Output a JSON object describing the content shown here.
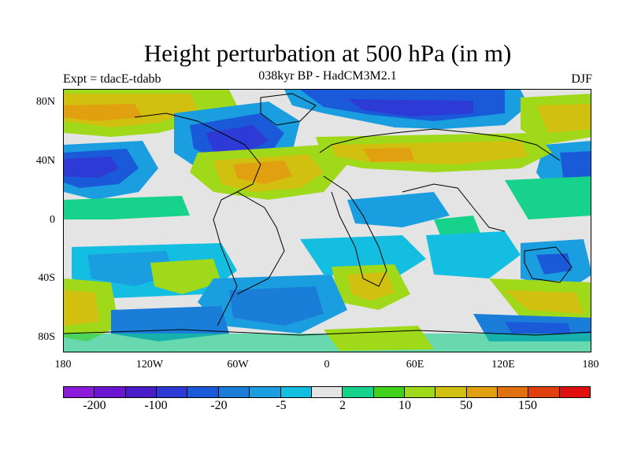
{
  "title": "Height perturbation at 500 hPa (in m)",
  "subtitle": "038kyr BP - HadCM3M2.1",
  "experiment_label": "Expt = tdacE-tdabb",
  "season_label": "DJF",
  "map": {
    "y_axis_ticks": [
      "80N",
      "40N",
      "0",
      "40S",
      "80S"
    ],
    "x_axis_ticks": [
      "180",
      "120W",
      "60W",
      "0",
      "60E",
      "120E",
      "180"
    ]
  },
  "colorbar": {
    "colors": [
      "#8b1ad9",
      "#6a16d0",
      "#4a1cc8",
      "#2e3ad6",
      "#1a5ad9",
      "#1a7ed9",
      "#1a9ee0",
      "#14bee0",
      "#e4e4e4",
      "#16d28a",
      "#40d21a",
      "#a0d81a",
      "#d2c010",
      "#e0a010",
      "#e07010",
      "#e04010",
      "#e01010"
    ],
    "labels": [
      "-200",
      "-100",
      "-20",
      "-5",
      "2",
      "10",
      "50",
      "150"
    ]
  },
  "colors": {
    "background": "#e4e4e4",
    "land_outline": "#000000"
  }
}
